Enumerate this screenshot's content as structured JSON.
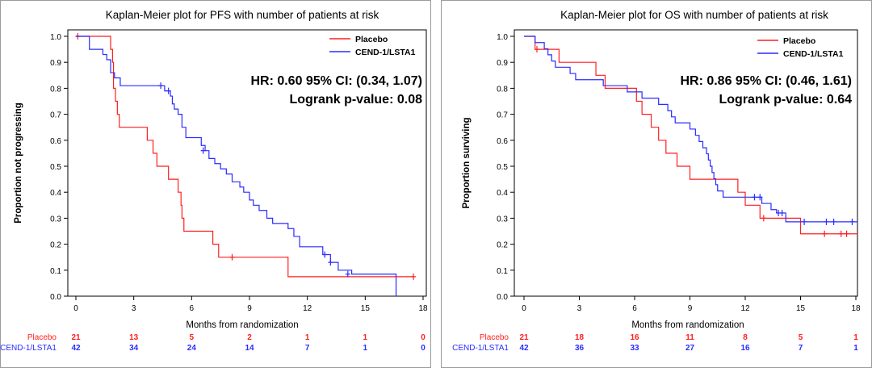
{
  "colors": {
    "placebo": "#ff1f1f",
    "active": "#2b2bff",
    "axis": "#000000",
    "frame": "#9a9a9a"
  },
  "chart_data": [
    {
      "type": "line",
      "subtype": "kaplan-meier",
      "title": "Kaplan-Meier plot for PFS with number of patients at risk",
      "xlabel": "Months from randomization",
      "ylabel": "Proportion not progressing",
      "xlim": [
        0,
        18
      ],
      "ylim": [
        0,
        1
      ],
      "xticks": [
        "0",
        "3",
        "6",
        "9",
        "12",
        "15",
        "18"
      ],
      "yticks": [
        "0.0",
        "0.1",
        "0.2",
        "0.3",
        "0.4",
        "0.5",
        "0.6",
        "0.7",
        "0.8",
        "0.9",
        "1.0"
      ],
      "legend_position": "top-right",
      "annotation_line1": "HR: 0.60  95% CI: (0.34, 1.07)",
      "annotation_line2": "Logrank p-value:  0.08",
      "risk_times": [
        0,
        3,
        6,
        9,
        12,
        15,
        18
      ],
      "series": [
        {
          "name": "Placebo",
          "color_key": "placebo",
          "steps": [
            [
              0,
              1.0
            ],
            [
              1.8,
              0.95
            ],
            [
              1.9,
              0.9
            ],
            [
              1.95,
              0.8
            ],
            [
              2.05,
              0.75
            ],
            [
              2.15,
              0.7
            ],
            [
              2.25,
              0.65
            ],
            [
              3.7,
              0.6
            ],
            [
              4.0,
              0.55
            ],
            [
              4.2,
              0.5
            ],
            [
              4.8,
              0.45
            ],
            [
              5.3,
              0.4
            ],
            [
              5.45,
              0.35
            ],
            [
              5.5,
              0.3
            ],
            [
              5.6,
              0.25
            ],
            [
              7.1,
              0.2
            ],
            [
              7.4,
              0.15
            ],
            [
              9.5,
              0.15
            ],
            [
              11.0,
              0.075
            ],
            [
              17.5,
              0.075
            ]
          ],
          "censors": [
            [
              0.1,
              1.0
            ],
            [
              8.1,
              0.15
            ],
            [
              17.5,
              0.075
            ]
          ],
          "at_risk": [
            "21",
            "13",
            "5",
            "2",
            "1",
            "1",
            "0"
          ]
        },
        {
          "name": "CEND-1/LSTA1",
          "color_key": "active",
          "steps": [
            [
              0,
              1.0
            ],
            [
              0.7,
              0.95
            ],
            [
              1.4,
              0.93
            ],
            [
              1.6,
              0.91
            ],
            [
              1.8,
              0.86
            ],
            [
              2.0,
              0.84
            ],
            [
              2.3,
              0.81
            ],
            [
              4.6,
              0.79
            ],
            [
              4.9,
              0.77
            ],
            [
              5.0,
              0.74
            ],
            [
              5.1,
              0.72
            ],
            [
              5.3,
              0.7
            ],
            [
              5.5,
              0.65
            ],
            [
              5.7,
              0.61
            ],
            [
              6.5,
              0.58
            ],
            [
              6.7,
              0.56
            ],
            [
              6.9,
              0.53
            ],
            [
              7.2,
              0.51
            ],
            [
              7.5,
              0.49
            ],
            [
              7.8,
              0.47
            ],
            [
              8.1,
              0.44
            ],
            [
              8.5,
              0.42
            ],
            [
              8.7,
              0.4
            ],
            [
              9.0,
              0.37
            ],
            [
              9.2,
              0.35
            ],
            [
              9.5,
              0.33
            ],
            [
              9.9,
              0.3
            ],
            [
              10.2,
              0.28
            ],
            [
              11.0,
              0.26
            ],
            [
              11.3,
              0.23
            ],
            [
              11.6,
              0.19
            ],
            [
              12.8,
              0.16
            ],
            [
              13.2,
              0.13
            ],
            [
              13.6,
              0.1
            ],
            [
              14.3,
              0.085
            ],
            [
              16.6,
              0.0
            ]
          ],
          "censors": [
            [
              4.4,
              0.81
            ],
            [
              4.8,
              0.79
            ],
            [
              6.6,
              0.56
            ],
            [
              12.9,
              0.16
            ],
            [
              13.2,
              0.13
            ],
            [
              14.1,
              0.085
            ]
          ],
          "at_risk": [
            "42",
            "34",
            "24",
            "14",
            "7",
            "1",
            "0"
          ]
        }
      ]
    },
    {
      "type": "line",
      "subtype": "kaplan-meier",
      "title": "Kaplan-Meier plot for OS with number of patients at risk",
      "xlabel": "Months from randomization",
      "ylabel": "Proportion surviving",
      "xlim": [
        0,
        18
      ],
      "ylim": [
        0,
        1
      ],
      "xticks": [
        "0",
        "3",
        "6",
        "9",
        "12",
        "15",
        "18"
      ],
      "yticks": [
        "0.0",
        "0.1",
        "0.2",
        "0.3",
        "0.4",
        "0.5",
        "0.6",
        "0.7",
        "0.8",
        "0.9",
        "1.0"
      ],
      "legend_position": "top-right",
      "annotation_line1": "HR: 0.86  95% CI: (0.46, 1.61)",
      "annotation_line2": "Logrank p-value:  0.64",
      "risk_times": [
        0,
        3,
        6,
        9,
        12,
        15,
        18
      ],
      "series": [
        {
          "name": "Placebo",
          "color_key": "placebo",
          "steps": [
            [
              0,
              1.0
            ],
            [
              0.6,
              0.95
            ],
            [
              1.9,
              0.9
            ],
            [
              3.9,
              0.85
            ],
            [
              4.4,
              0.8
            ],
            [
              6.1,
              0.75
            ],
            [
              6.4,
              0.7
            ],
            [
              6.9,
              0.65
            ],
            [
              7.3,
              0.6
            ],
            [
              7.7,
              0.55
            ],
            [
              8.3,
              0.5
            ],
            [
              9.0,
              0.45
            ],
            [
              11.6,
              0.4
            ],
            [
              12.0,
              0.35
            ],
            [
              12.8,
              0.3
            ],
            [
              15.0,
              0.24
            ],
            [
              18.3,
              0.24
            ]
          ],
          "censors": [
            [
              0.7,
              0.95
            ],
            [
              13.0,
              0.3
            ],
            [
              16.3,
              0.24
            ],
            [
              17.2,
              0.24
            ],
            [
              17.5,
              0.24
            ]
          ],
          "at_risk": [
            "21",
            "18",
            "16",
            "11",
            "8",
            "5",
            "1"
          ]
        },
        {
          "name": "CEND-1/LSTA1",
          "color_key": "active",
          "steps": [
            [
              0,
              1.0
            ],
            [
              0.6,
              0.976
            ],
            [
              1.1,
              0.952
            ],
            [
              1.3,
              0.929
            ],
            [
              1.5,
              0.905
            ],
            [
              1.7,
              0.881
            ],
            [
              2.5,
              0.857
            ],
            [
              2.8,
              0.833
            ],
            [
              4.3,
              0.81
            ],
            [
              5.6,
              0.786
            ],
            [
              6.4,
              0.762
            ],
            [
              7.3,
              0.738
            ],
            [
              7.8,
              0.714
            ],
            [
              8.0,
              0.69
            ],
            [
              8.2,
              0.667
            ],
            [
              9.0,
              0.643
            ],
            [
              9.3,
              0.619
            ],
            [
              9.5,
              0.595
            ],
            [
              9.7,
              0.571
            ],
            [
              9.9,
              0.548
            ],
            [
              10.0,
              0.524
            ],
            [
              10.1,
              0.5
            ],
            [
              10.2,
              0.476
            ],
            [
              10.3,
              0.452
            ],
            [
              10.4,
              0.429
            ],
            [
              10.5,
              0.405
            ],
            [
              10.8,
              0.381
            ],
            [
              12.9,
              0.357
            ],
            [
              13.4,
              0.333
            ],
            [
              13.7,
              0.32
            ],
            [
              14.2,
              0.286
            ],
            [
              18.3,
              0.286
            ]
          ],
          "censors": [
            [
              12.5,
              0.381
            ],
            [
              12.8,
              0.381
            ],
            [
              13.8,
              0.32
            ],
            [
              14.0,
              0.32
            ],
            [
              15.2,
              0.286
            ],
            [
              16.4,
              0.286
            ],
            [
              16.8,
              0.286
            ],
            [
              17.8,
              0.286
            ]
          ],
          "at_risk": [
            "42",
            "36",
            "33",
            "27",
            "16",
            "7",
            "1"
          ]
        }
      ]
    }
  ]
}
